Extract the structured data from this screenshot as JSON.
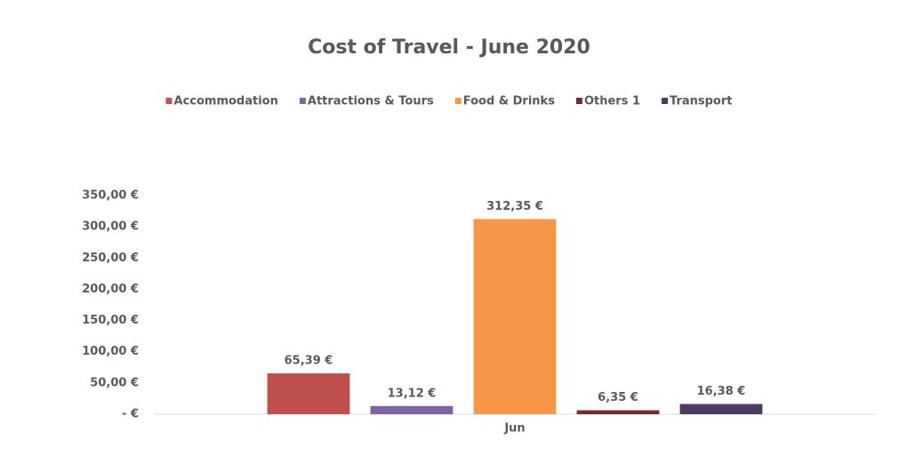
{
  "chart_data": {
    "type": "bar",
    "title": "Cost of Travel - June 2020",
    "categories": [
      "Jun"
    ],
    "series": [
      {
        "name": "Accommodation",
        "color": "#c0504d",
        "values": [
          65.39
        ],
        "value_labels": [
          "65,39 €"
        ]
      },
      {
        "name": "Attractions & Tours",
        "color": "#8064a2",
        "values": [
          13.12
        ],
        "value_labels": [
          "13,12 €"
        ]
      },
      {
        "name": "Food & Drinks",
        "color": "#f79646",
        "values": [
          312.35
        ],
        "value_labels": [
          "312,35 €"
        ]
      },
      {
        "name": "Others 1",
        "color": "#772c2a",
        "values": [
          6.35
        ],
        "value_labels": [
          "6,35 €"
        ]
      },
      {
        "name": "Transport",
        "color": "#4d3b62",
        "values": [
          16.38
        ],
        "value_labels": [
          "16,38 €"
        ]
      }
    ],
    "ylim": [
      0,
      350
    ],
    "yticks": [
      {
        "value": 0,
        "label": "-  €"
      },
      {
        "value": 50,
        "label": "50,00 €"
      },
      {
        "value": 100,
        "label": "100,00 €"
      },
      {
        "value": 150,
        "label": "150,00 €"
      },
      {
        "value": 200,
        "label": "200,00 €"
      },
      {
        "value": 250,
        "label": "250,00 €"
      },
      {
        "value": 300,
        "label": "300,00 €"
      },
      {
        "value": 350,
        "label": "350,00 €"
      }
    ],
    "legend": "top",
    "grid": false
  }
}
